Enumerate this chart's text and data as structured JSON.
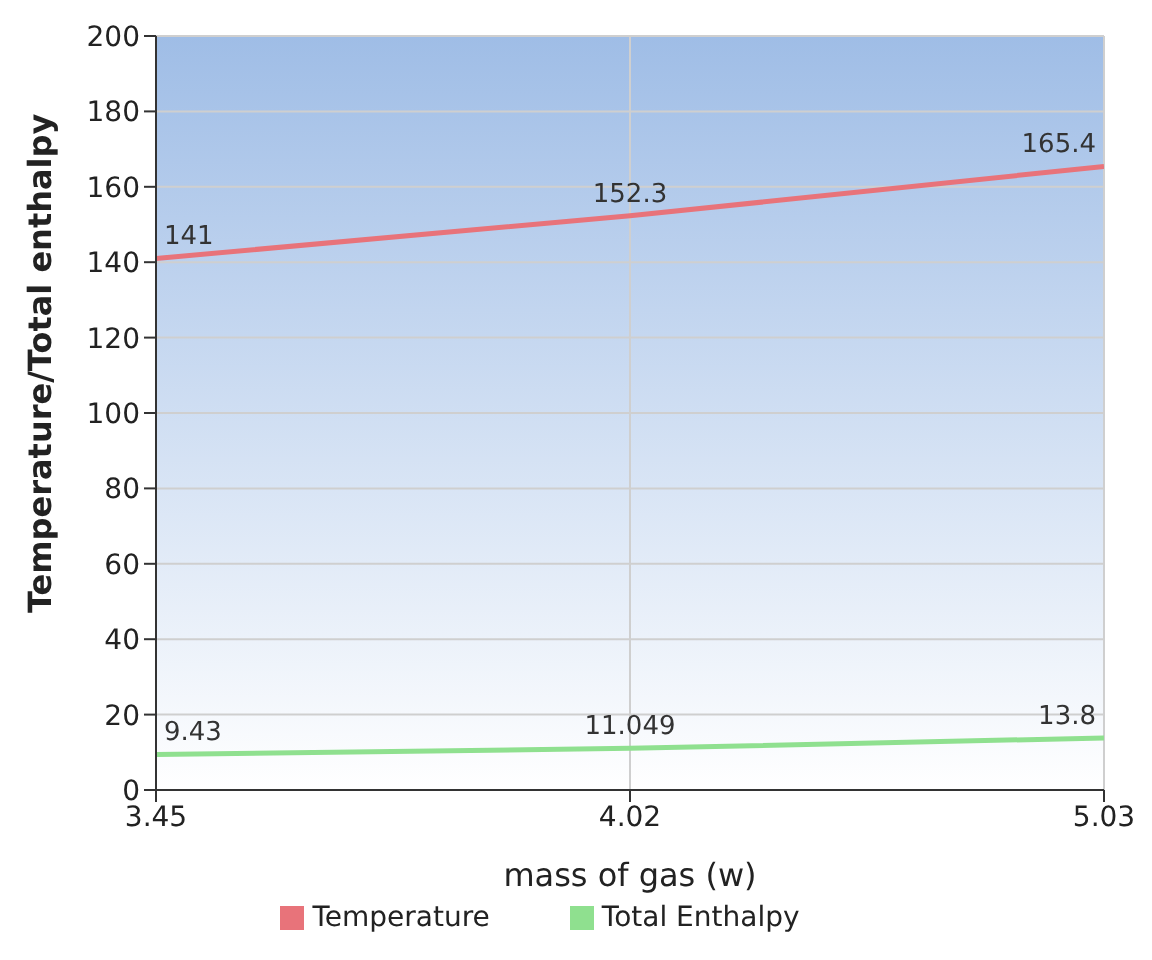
{
  "chart_data": {
    "type": "line",
    "xlabel": "mass of gas (w)",
    "ylabel": "Temperature/Total enthalpy",
    "categories": [
      "3.45",
      "4.02",
      "5.03"
    ],
    "series": [
      {
        "name": "Temperature",
        "color": "#e8737a",
        "values": [
          141,
          152.3,
          165.4
        ]
      },
      {
        "name": "Total Enthalpy",
        "color": "#8fe08f",
        "values": [
          9.43,
          11.049,
          13.8
        ]
      }
    ],
    "ylim": [
      0,
      200
    ],
    "yticks": [
      0,
      20,
      40,
      60,
      80,
      100,
      120,
      140,
      160,
      180,
      200
    ],
    "grid": true,
    "legend": "bottom",
    "data_labels": true,
    "marker": "none",
    "line_style": "solid"
  }
}
